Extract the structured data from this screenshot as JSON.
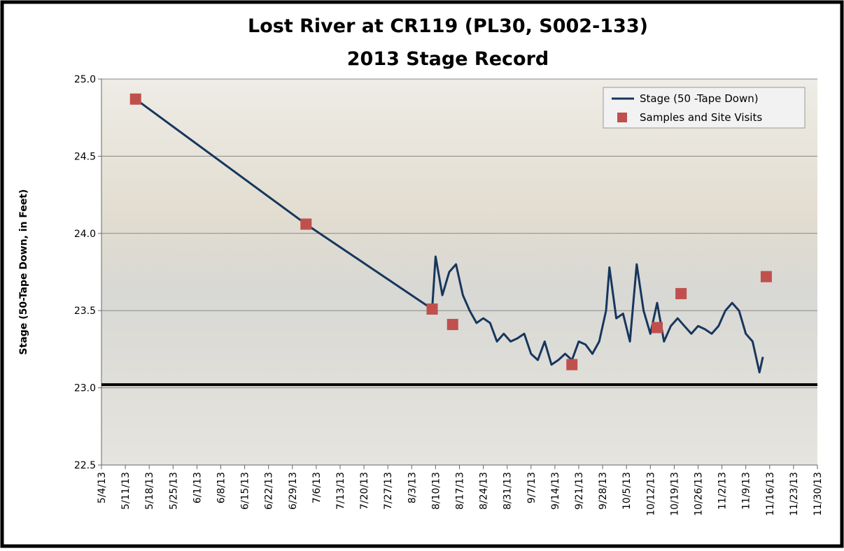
{
  "chart_data": {
    "type": "line",
    "title": "Lost River at CR119 (PL30, S002-133)",
    "subtitle": "2013 Stage Record",
    "y_label": "Stage (50-Tape Down, in Feet)",
    "ylim": [
      22.5,
      25.0
    ],
    "yticks": [
      22.5,
      {
        "value": 23.0,
        "label": "23.0"
      },
      23.5,
      {
        "value": 24.0,
        "label": "24.0"
      },
      24.5,
      {
        "value": 25.0,
        "label": "25.0"
      }
    ],
    "xlim": [
      "5/4/13",
      "11/30/13"
    ],
    "xticks": [
      "5/4/13",
      "5/11/13",
      "5/18/13",
      "5/25/13",
      "6/1/13",
      "6/8/13",
      "6/15/13",
      "6/22/13",
      "6/29/13",
      "7/6/13",
      "7/13/13",
      "7/20/13",
      "7/27/13",
      "8/3/13",
      "8/10/13",
      "8/17/13",
      "8/24/13",
      "8/31/13",
      "9/7/13",
      "9/14/13",
      "9/21/13",
      "9/28/13",
      "10/5/13",
      "10/12/13",
      "10/19/13",
      "10/26/13",
      "11/2/13",
      "11/9/13",
      "11/16/13",
      "11/23/13",
      "11/30/13"
    ],
    "grid": true,
    "legend": "upper right",
    "hline": 23.02,
    "series": [
      {
        "name": "Stage (50 -Tape Down)",
        "mark": "line",
        "color": "#17365d",
        "x": [
          "5/14/13",
          "7/3/13",
          "8/9/13",
          "8/10/13",
          "8/12/13",
          "8/14/13",
          "8/16/13",
          "8/18/13",
          "8/20/13",
          "8/22/13",
          "8/24/13",
          "8/26/13",
          "8/28/13",
          "8/30/13",
          "9/1/13",
          "9/3/13",
          "9/5/13",
          "9/7/13",
          "9/9/13",
          "9/11/13",
          "9/13/13",
          "9/15/13",
          "9/17/13",
          "9/19/13",
          "9/21/13",
          "9/23/13",
          "9/25/13",
          "9/27/13",
          "9/29/13",
          "9/30/13",
          "10/2/13",
          "10/4/13",
          "10/6/13",
          "10/8/13",
          "10/10/13",
          "10/12/13",
          "10/14/13",
          "10/16/13",
          "10/18/13",
          "10/20/13",
          "10/22/13",
          "10/24/13",
          "10/26/13",
          "10/28/13",
          "10/30/13",
          "11/1/13",
          "11/3/13",
          "11/5/13",
          "11/7/13",
          "11/9/13",
          "11/11/13",
          "11/13/13",
          "11/14/13"
        ],
        "values": [
          24.87,
          24.06,
          23.51,
          23.85,
          23.6,
          23.75,
          23.8,
          23.6,
          23.5,
          23.42,
          23.45,
          23.42,
          23.3,
          23.35,
          23.3,
          23.32,
          23.35,
          23.22,
          23.18,
          23.3,
          23.15,
          23.18,
          23.22,
          23.18,
          23.3,
          23.28,
          23.22,
          23.3,
          23.5,
          23.78,
          23.45,
          23.48,
          23.3,
          23.8,
          23.5,
          23.35,
          23.55,
          23.3,
          23.4,
          23.45,
          23.4,
          23.35,
          23.4,
          23.38,
          23.35,
          23.4,
          23.5,
          23.55,
          23.5,
          23.35,
          23.3,
          23.1,
          23.2
        ]
      },
      {
        "name": "Samples and Site Visits",
        "mark": "marker",
        "color": "#c0504d",
        "x": [
          "5/14/13",
          "7/3/13",
          "8/9/13",
          "8/15/13",
          "9/19/13",
          "10/14/13",
          "10/21/13",
          "11/15/13"
        ],
        "values": [
          24.87,
          24.06,
          23.51,
          23.41,
          23.15,
          23.39,
          23.61,
          23.72
        ]
      }
    ]
  }
}
